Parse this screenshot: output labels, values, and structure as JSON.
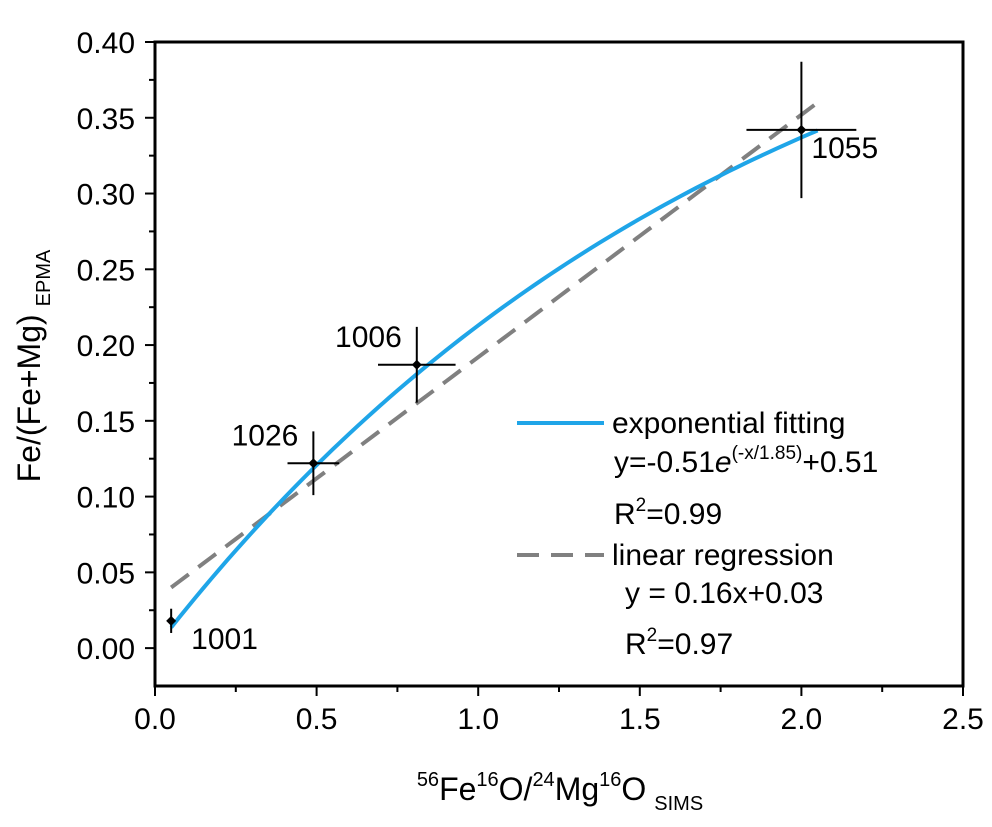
{
  "chart_data": {
    "type": "scatter",
    "xlabel": {
      "parts": [
        "56",
        "Fe",
        "16",
        "O/",
        "24",
        "Mg",
        "16",
        "O",
        "SIMS"
      ]
    },
    "ylabel": {
      "main": "Fe/(Fe+Mg)",
      "sub": "EPMA"
    },
    "xlim": [
      0,
      2.5
    ],
    "ylim": [
      -0.025,
      0.4
    ],
    "xticks": [
      0.0,
      0.5,
      1.0,
      1.5,
      2.0,
      2.5
    ],
    "xtick_labels": [
      "0.0",
      "0.5",
      "1.0",
      "1.5",
      "2.0",
      "2.5"
    ],
    "yticks": [
      0.0,
      0.05,
      0.1,
      0.15,
      0.2,
      0.25,
      0.3,
      0.35,
      0.4
    ],
    "ytick_labels": [
      "0.00",
      "0.05",
      "0.10",
      "0.15",
      "0.20",
      "0.25",
      "0.30",
      "0.35",
      "0.40"
    ],
    "points": [
      {
        "label": "1001",
        "x": 0.05,
        "y": 0.018,
        "xerr": 0.0,
        "yerr": 0.008
      },
      {
        "label": "1026",
        "x": 0.49,
        "y": 0.122,
        "xerr": 0.08,
        "yerr": 0.021
      },
      {
        "label": "1006",
        "x": 0.81,
        "y": 0.187,
        "xerr": 0.12,
        "yerr": 0.025
      },
      {
        "label": "1055",
        "x": 2.0,
        "y": 0.342,
        "xerr": 0.17,
        "yerr": 0.045
      }
    ],
    "series": [
      {
        "name": "exponential fitting",
        "kind": "exponential",
        "a": 0.51,
        "t": 1.85,
        "c": 0.51,
        "x_range": [
          0.05,
          2.05
        ],
        "color": "#1fa5e8",
        "style": "solid"
      },
      {
        "name": "linear regression",
        "kind": "linear",
        "slope": 0.16,
        "intercept": 0.032,
        "x_range": [
          0.05,
          2.05
        ],
        "color": "#808080",
        "style": "dashed"
      }
    ],
    "legend": {
      "exp_label": "exponential fitting",
      "exp_eq_pre": "y=-0.51",
      "exp_eq_e": "e",
      "exp_eq_sup": "(-x/1.85)",
      "exp_eq_post": "+0.51",
      "exp_r2_pre": "R",
      "exp_r2_sup": "2",
      "exp_r2_post": "=0.99",
      "lin_label": "linear regression",
      "lin_eq": "y = 0.16x+0.03",
      "lin_r2_pre": "R",
      "lin_r2_sup": "2",
      "lin_r2_post": "=0.97"
    },
    "colors": {
      "exp": "#1fa5e8",
      "lin": "#808080",
      "marker": "#000000"
    }
  }
}
